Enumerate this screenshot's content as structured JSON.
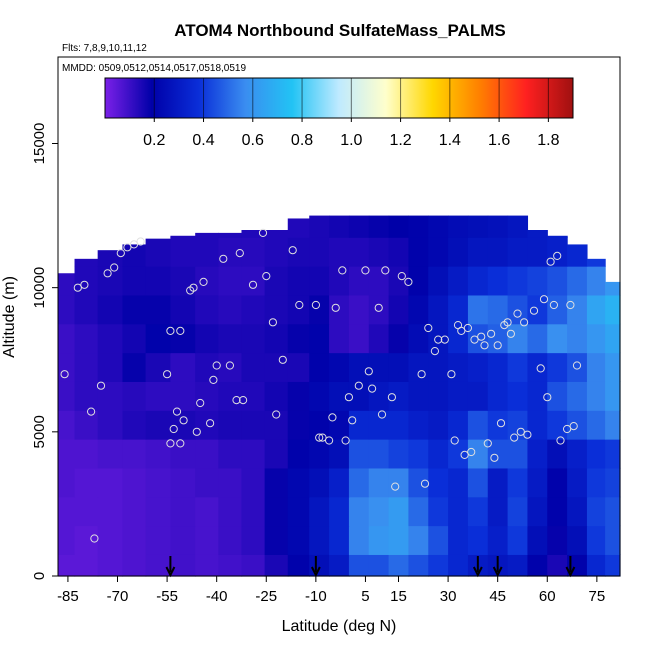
{
  "chart_data": {
    "type": "heatmap",
    "title": "ATOM4 Northbound SulfateMass_PALMS",
    "notes": [
      "Flts: 7,8,9,10,11,12",
      "MMDD: 0509,0512,0514,0517,0518,0519"
    ],
    "xlabel": "Latitude (deg N)",
    "ylabel": "Altitude (m)",
    "xlim": [
      -88,
      82
    ],
    "ylim": [
      0,
      18000
    ],
    "x_ticks": [
      -85,
      -70,
      -55,
      -40,
      -25,
      -10,
      5,
      15,
      30,
      45,
      60,
      75
    ],
    "y_ticks": [
      0,
      5000,
      10000,
      15000
    ],
    "colorbar": {
      "range": [
        0,
        1.9
      ],
      "ticks": [
        0.2,
        0.4,
        0.6,
        0.8,
        1.0,
        1.2,
        1.4,
        1.6,
        1.8
      ],
      "tick_labels": [
        "0.2",
        "0.4",
        "0.6",
        "0.8",
        "1.0",
        "1.2",
        "1.4",
        "1.6",
        "1.8"
      ],
      "colors": [
        "#7b20e8",
        "#0000a8",
        "#0a2ed8",
        "#3a8df0",
        "#22c3f4",
        "#bfeaff",
        "#ffffcc",
        "#ffd700",
        "#ff8000",
        "#ff2020",
        "#a01010"
      ]
    },
    "grid": false,
    "field": {
      "x": [
        -86,
        -80,
        -72,
        -65,
        -58,
        -50,
        -43,
        -36,
        -29,
        -22,
        -15,
        -9,
        -3,
        3,
        9,
        15,
        21,
        27,
        33,
        39,
        45,
        51,
        57,
        63,
        69,
        75,
        80
      ],
      "y": [
        250,
        1250,
        2250,
        3250,
        4250,
        5250,
        6250,
        7250,
        8250,
        9250,
        10250,
        11250,
        12250
      ],
      "top_altitude": [
        10500,
        11000,
        11300,
        11500,
        11700,
        11800,
        11900,
        11900,
        12000,
        12000,
        12400,
        12500,
        12500,
        12500,
        12500,
        12500,
        12500,
        12500,
        12500,
        12500,
        12500,
        12500,
        12000,
        11800,
        11500,
        11000,
        10200
      ],
      "values": [
        [
          0.05,
          0.05,
          0.06,
          0.07,
          0.08,
          0.09,
          0.08,
          0.09,
          0.1,
          0.15,
          0.2,
          0.25,
          0.3,
          0.45,
          0.45,
          0.5,
          0.45,
          0.4,
          0.35,
          0.3,
          0.28,
          0.3,
          0.2,
          0.15,
          0.2,
          0.35,
          0.4
        ],
        [
          0.06,
          0.05,
          0.06,
          0.07,
          0.08,
          0.09,
          0.08,
          0.1,
          0.12,
          0.18,
          0.22,
          0.28,
          0.35,
          0.55,
          0.6,
          0.62,
          0.55,
          0.45,
          0.35,
          0.38,
          0.32,
          0.4,
          0.25,
          0.18,
          0.25,
          0.4,
          0.45
        ],
        [
          0.06,
          0.06,
          0.06,
          0.07,
          0.08,
          0.09,
          0.08,
          0.1,
          0.12,
          0.18,
          0.22,
          0.28,
          0.35,
          0.55,
          0.58,
          0.62,
          0.5,
          0.4,
          0.35,
          0.4,
          0.3,
          0.42,
          0.28,
          0.2,
          0.28,
          0.42,
          0.45
        ],
        [
          0.07,
          0.06,
          0.06,
          0.07,
          0.08,
          0.09,
          0.1,
          0.1,
          0.12,
          0.18,
          0.22,
          0.25,
          0.32,
          0.5,
          0.55,
          0.55,
          0.45,
          0.38,
          0.35,
          0.45,
          0.3,
          0.4,
          0.3,
          0.2,
          0.3,
          0.4,
          0.42
        ],
        [
          0.07,
          0.07,
          0.08,
          0.08,
          0.09,
          0.1,
          0.1,
          0.12,
          0.12,
          0.15,
          0.2,
          0.22,
          0.25,
          0.45,
          0.45,
          0.42,
          0.4,
          0.35,
          0.4,
          0.55,
          0.45,
          0.45,
          0.32,
          0.25,
          0.32,
          0.38,
          0.4
        ],
        [
          0.08,
          0.1,
          0.12,
          0.14,
          0.15,
          0.15,
          0.14,
          0.15,
          0.15,
          0.15,
          0.18,
          0.2,
          0.22,
          0.35,
          0.35,
          0.35,
          0.32,
          0.3,
          0.35,
          0.45,
          0.4,
          0.42,
          0.35,
          0.4,
          0.45,
          0.5,
          0.55
        ],
        [
          0.1,
          0.12,
          0.12,
          0.13,
          0.12,
          0.12,
          0.13,
          0.14,
          0.14,
          0.16,
          0.18,
          0.22,
          0.25,
          0.25,
          0.28,
          0.3,
          0.28,
          0.28,
          0.3,
          0.3,
          0.35,
          0.38,
          0.35,
          0.45,
          0.5,
          0.55,
          0.6
        ],
        [
          0.1,
          0.12,
          0.14,
          0.18,
          0.15,
          0.12,
          0.14,
          0.13,
          0.15,
          0.15,
          0.15,
          0.2,
          0.22,
          0.25,
          0.25,
          0.25,
          0.28,
          0.28,
          0.3,
          0.32,
          0.35,
          0.4,
          0.35,
          0.4,
          0.45,
          0.55,
          0.6
        ],
        [
          0.1,
          0.12,
          0.14,
          0.16,
          0.2,
          0.18,
          0.16,
          0.15,
          0.15,
          0.16,
          0.18,
          0.2,
          0.12,
          0.1,
          0.14,
          0.18,
          0.24,
          0.28,
          0.35,
          0.45,
          0.48,
          0.55,
          0.5,
          0.58,
          0.55,
          0.6,
          0.65
        ],
        [
          0.12,
          0.14,
          0.16,
          0.18,
          0.18,
          0.16,
          0.14,
          0.13,
          0.14,
          0.15,
          0.16,
          0.18,
          0.12,
          0.1,
          0.12,
          0.16,
          0.22,
          0.28,
          0.35,
          0.52,
          0.5,
          0.45,
          0.4,
          0.48,
          0.55,
          0.65,
          0.7
        ],
        [
          0.12,
          0.14,
          0.15,
          0.16,
          0.16,
          0.15,
          0.13,
          0.12,
          0.12,
          0.15,
          0.16,
          0.16,
          0.14,
          0.12,
          0.12,
          0.15,
          0.2,
          0.25,
          0.3,
          0.35,
          0.38,
          0.4,
          0.42,
          0.45,
          0.5,
          0.55,
          0.6
        ],
        [
          0.14,
          0.14,
          0.15,
          0.16,
          0.15,
          0.14,
          0.14,
          0.13,
          0.13,
          0.14,
          0.15,
          0.15,
          0.14,
          0.14,
          0.15,
          0.16,
          0.2,
          0.22,
          0.25,
          0.28,
          0.28,
          0.3,
          0.3,
          0.32,
          0.35,
          0.4,
          0.45
        ],
        [
          0.14,
          0.14,
          0.15,
          0.15,
          0.15,
          0.14,
          0.14,
          0.14,
          0.14,
          0.14,
          0.14,
          0.15,
          0.16,
          0.17,
          0.18,
          0.19,
          0.2,
          0.22,
          0.24,
          0.25,
          0.26,
          0.28,
          0.3,
          0.32,
          0.34,
          0.38,
          0.4
        ]
      ]
    },
    "sample_points": [
      [
        -86,
        7000
      ],
      [
        -82,
        10000
      ],
      [
        -80,
        10100
      ],
      [
        -78,
        5700
      ],
      [
        -77,
        1300
      ],
      [
        -75,
        6600
      ],
      [
        -73,
        10500
      ],
      [
        -71,
        10700
      ],
      [
        -69,
        11200
      ],
      [
        -67,
        11400
      ],
      [
        -65,
        11500
      ],
      [
        -63,
        11600
      ],
      [
        -55,
        7000
      ],
      [
        -54,
        8500
      ],
      [
        -54,
        4600
      ],
      [
        -53,
        5100
      ],
      [
        -52,
        5700
      ],
      [
        -51,
        8500
      ],
      [
        -51,
        4600
      ],
      [
        -50,
        5400
      ],
      [
        -48,
        9900
      ],
      [
        -47,
        10000
      ],
      [
        -46,
        5000
      ],
      [
        -45,
        6000
      ],
      [
        -44,
        10200
      ],
      [
        -42,
        5300
      ],
      [
        -41,
        6800
      ],
      [
        -40,
        7300
      ],
      [
        -38,
        11000
      ],
      [
        -36,
        7300
      ],
      [
        -34,
        6100
      ],
      [
        -33,
        11200
      ],
      [
        -32,
        6100
      ],
      [
        -29,
        10100
      ],
      [
        -26,
        11900
      ],
      [
        -25,
        10400
      ],
      [
        -23,
        8800
      ],
      [
        -22,
        5600
      ],
      [
        -20,
        7500
      ],
      [
        -17,
        11300
      ],
      [
        -15,
        9400
      ],
      [
        -10,
        9400
      ],
      [
        -9,
        4800
      ],
      [
        -8,
        4800
      ],
      [
        -6,
        4700
      ],
      [
        -5,
        5500
      ],
      [
        -4,
        9300
      ],
      [
        -2,
        10600
      ],
      [
        -1,
        4700
      ],
      [
        0,
        6200
      ],
      [
        1,
        5400
      ],
      [
        3,
        6600
      ],
      [
        5,
        10600
      ],
      [
        6,
        7100
      ],
      [
        7,
        6500
      ],
      [
        9,
        9300
      ],
      [
        10,
        5600
      ],
      [
        11,
        10600
      ],
      [
        13,
        6200
      ],
      [
        14,
        3100
      ],
      [
        16,
        10400
      ],
      [
        18,
        10200
      ],
      [
        22,
        7000
      ],
      [
        23,
        3200
      ],
      [
        24,
        8600
      ],
      [
        26,
        7800
      ],
      [
        27,
        8200
      ],
      [
        29,
        8200
      ],
      [
        31,
        7000
      ],
      [
        32,
        4700
      ],
      [
        33,
        8700
      ],
      [
        34,
        8500
      ],
      [
        35,
        4200
      ],
      [
        36,
        8600
      ],
      [
        37,
        4300
      ],
      [
        38,
        8200
      ],
      [
        40,
        8300
      ],
      [
        41,
        8000
      ],
      [
        42,
        4600
      ],
      [
        43,
        8400
      ],
      [
        44,
        4100
      ],
      [
        45,
        8000
      ],
      [
        46,
        5300
      ],
      [
        47,
        8700
      ],
      [
        48,
        8800
      ],
      [
        49,
        8400
      ],
      [
        50,
        4800
      ],
      [
        51,
        9100
      ],
      [
        52,
        5000
      ],
      [
        53,
        8800
      ],
      [
        54,
        4900
      ],
      [
        56,
        9200
      ],
      [
        58,
        7200
      ],
      [
        59,
        9600
      ],
      [
        60,
        6200
      ],
      [
        61,
        10900
      ],
      [
        62,
        9400
      ],
      [
        63,
        11100
      ],
      [
        64,
        4700
      ],
      [
        66,
        5100
      ],
      [
        67,
        9400
      ],
      [
        68,
        5200
      ],
      [
        69,
        7300
      ]
    ],
    "arrows_lat": [
      -54,
      -10,
      39,
      45,
      67
    ]
  }
}
